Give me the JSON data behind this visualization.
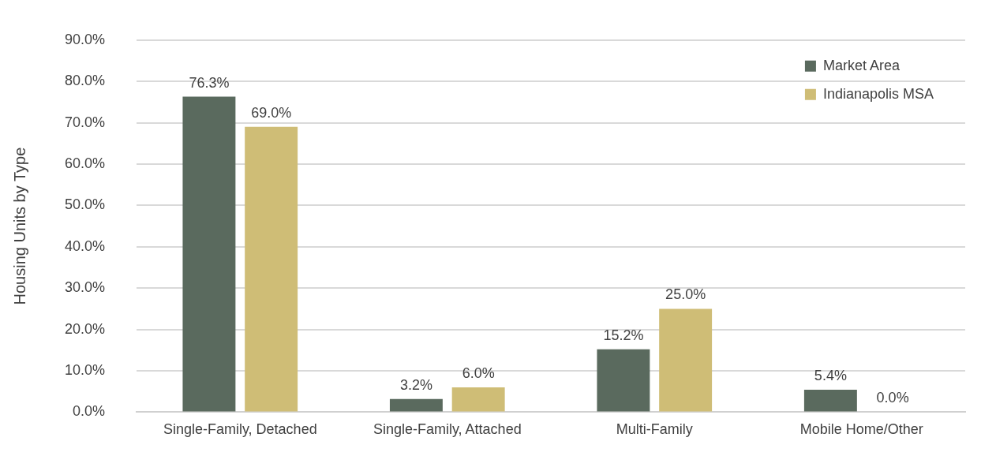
{
  "chart_data": {
    "type": "bar",
    "ylabel": "Housing Units by Type",
    "categories": [
      "Single-Family, Detached",
      "Single-Family, Attached",
      "Multi-Family",
      "Mobile Home/Other"
    ],
    "series": [
      {
        "name": "Market Area",
        "color": "#5a6a5e",
        "values": [
          76.3,
          3.2,
          15.2,
          5.4
        ]
      },
      {
        "name": "Indianapolis MSA",
        "color": "#cfbd76",
        "values": [
          69.0,
          6.0,
          25.0,
          0.0
        ]
      }
    ],
    "ylim": [
      0,
      90
    ],
    "yticks": [
      {
        "value": 0,
        "label": "0.0%"
      },
      {
        "value": 10,
        "label": "10.0%"
      },
      {
        "value": 20,
        "label": "20.0%"
      },
      {
        "value": 30,
        "label": "30.0%"
      },
      {
        "value": 40,
        "label": "40.0%"
      },
      {
        "value": 50,
        "label": "50.0%"
      },
      {
        "value": 60,
        "label": "60.0%"
      },
      {
        "value": 70,
        "label": "70.0%"
      },
      {
        "value": 80,
        "label": "80.0%"
      },
      {
        "value": 90,
        "label": "90.0%"
      }
    ],
    "value_labels": [
      [
        "76.3%",
        "3.2%",
        "15.2%",
        "5.4%"
      ],
      [
        "69.0%",
        "6.0%",
        "25.0%",
        "0.0%"
      ]
    ],
    "grid": "y",
    "legend": "top right"
  }
}
